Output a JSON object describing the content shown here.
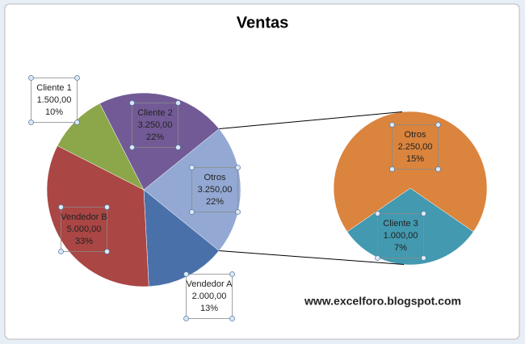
{
  "chart_data": {
    "type": "pie-of-pie",
    "title": "Ventas",
    "watermark": "www.excelforo.blogspot.com",
    "pies": [
      {
        "categories": [
          "Otros",
          "Vendedor A",
          "Vendedor B",
          "Cliente 1",
          "Cliente 2"
        ],
        "values": [
          3250,
          2000,
          5000,
          1500,
          3250
        ],
        "value_labels": [
          "3.250,00",
          "2.000,00",
          "5.000,00",
          "1.500,00",
          "3.250,00"
        ],
        "percents": [
          22,
          13,
          33,
          10,
          22
        ],
        "percent_labels": [
          "22%",
          "13%",
          "33%",
          "10%",
          "22%"
        ],
        "colors": [
          "#93a9d3",
          "#4a70aa",
          "#aa4644",
          "#8ba74a",
          "#725a96"
        ]
      },
      {
        "categories": [
          "Cliente 3",
          "Otros"
        ],
        "values": [
          1000,
          2250
        ],
        "value_labels": [
          "1.000,00",
          "2.250,00"
        ],
        "percents": [
          7,
          15
        ],
        "percent_labels": [
          "7%",
          "15%"
        ],
        "colors": [
          "#4299b0",
          "#db843d"
        ]
      }
    ]
  }
}
